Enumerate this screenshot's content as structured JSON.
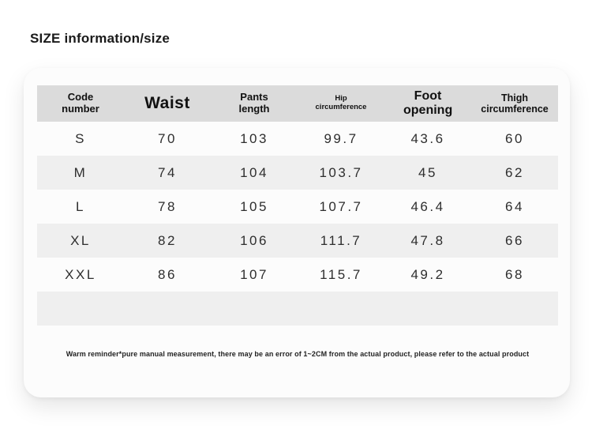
{
  "page": {
    "title": "SIZE information/size"
  },
  "colors": {
    "header_bg": "#dbdbdb",
    "row_alt_bg": "#efefef",
    "card_bg": "#fcfcfc",
    "page_bg": "#ffffff",
    "text": "#1a1a1a"
  },
  "chart_data": {
    "type": "table",
    "title": "SIZE information/size",
    "columns": [
      {
        "key": "code",
        "label": "Code number"
      },
      {
        "key": "waist",
        "label": "Waist"
      },
      {
        "key": "pants_length",
        "label": "Pants length"
      },
      {
        "key": "hip_circumference",
        "label": "Hip circumference"
      },
      {
        "key": "foot_opening",
        "label": "Foot opening"
      },
      {
        "key": "thigh_circumference",
        "label": "Thigh circumference"
      }
    ],
    "rows": [
      {
        "code": "S",
        "waist": "70",
        "pants_length": "103",
        "hip_circumference": "99.7",
        "foot_opening": "43.6",
        "thigh_circumference": "60"
      },
      {
        "code": "M",
        "waist": "74",
        "pants_length": "104",
        "hip_circumference": "103.7",
        "foot_opening": "45",
        "thigh_circumference": "62"
      },
      {
        "code": "L",
        "waist": "78",
        "pants_length": "105",
        "hip_circumference": "107.7",
        "foot_opening": "46.4",
        "thigh_circumference": "64"
      },
      {
        "code": "XL",
        "waist": "82",
        "pants_length": "106",
        "hip_circumference": "111.7",
        "foot_opening": "47.8",
        "thigh_circumference": "66"
      },
      {
        "code": "XXL",
        "waist": "86",
        "pants_length": "107",
        "hip_circumference": "115.7",
        "foot_opening": "49.2",
        "thigh_circumference": "68"
      }
    ],
    "note": "Warm reminder*pure manual measurement, there may be an error of 1~2CM from the actual product, please refer to the actual product"
  }
}
